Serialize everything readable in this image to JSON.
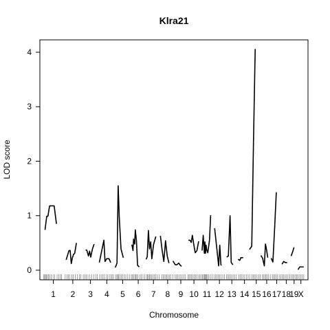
{
  "chart_data": {
    "type": "line",
    "title": "Klra21",
    "xlabel": "Chromosome",
    "ylabel": "LOD score",
    "ylim": [
      0,
      4.2
    ],
    "yticks": [
      0,
      1,
      2,
      3,
      4
    ],
    "grid": false,
    "legend": "none",
    "line_color": "#000000",
    "chromosomes": [
      {
        "label": "1",
        "start": 0.0,
        "end": 195.0
      },
      {
        "label": "2",
        "start": 195.0,
        "end": 377.0
      },
      {
        "label": "3",
        "start": 377.0,
        "end": 537.0
      },
      {
        "label": "4",
        "start": 537.0,
        "end": 693.0
      },
      {
        "label": "5",
        "start": 693.0,
        "end": 845.0
      },
      {
        "label": "6",
        "start": 845.0,
        "end": 995.0
      },
      {
        "label": "7",
        "start": 995.0,
        "end": 1140.0
      },
      {
        "label": "8",
        "start": 1140.0,
        "end": 1270.0
      },
      {
        "label": "9",
        "start": 1270.0,
        "end": 1395.0
      },
      {
        "label": "10",
        "start": 1395.0,
        "end": 1525.0
      },
      {
        "label": "11",
        "start": 1525.0,
        "end": 1647.0
      },
      {
        "label": "12",
        "start": 1647.0,
        "end": 1767.0
      },
      {
        "label": "13",
        "start": 1767.0,
        "end": 1887.0
      },
      {
        "label": "14",
        "start": 1887.0,
        "end": 2012.0
      },
      {
        "label": "15",
        "start": 2012.0,
        "end": 2116.0
      },
      {
        "label": "16",
        "start": 2116.0,
        "end": 2214.0
      },
      {
        "label": "17",
        "start": 2214.0,
        "end": 2309.0
      },
      {
        "label": "18",
        "start": 2309.0,
        "end": 2400.0
      },
      {
        "label": "19",
        "start": 2400.0,
        "end": 2461.0
      },
      {
        "label": "X",
        "start": 2461.0,
        "end": 2532.0
      }
    ],
    "series": [
      {
        "chr": "1",
        "x": [
          16.6,
          33.2,
          44.3,
          60.9,
          105.2,
          127.3
        ],
        "y": [
          0.74,
          0.99,
          0.99,
          1.18,
          1.18,
          0.85
        ]
      },
      {
        "chr": "2",
        "x": [
          221.3,
          248.9,
          260.0,
          271.1,
          282.2,
          293.2,
          304.3,
          320.9
        ],
        "y": [
          0.19,
          0.36,
          0.36,
          0.12,
          0.23,
          0.29,
          0.31,
          0.5
        ]
      },
      {
        "chr": "3",
        "x": [
          409.8,
          420.9,
          437.5,
          448.5,
          459.6,
          476.2,
          492.8
        ],
        "y": [
          0.37,
          0.37,
          0.26,
          0.35,
          0.24,
          0.39,
          0.48
        ]
      },
      {
        "chr": "4",
        "x": [
          542.7,
          587.0,
          598.0,
          614.6,
          636.8,
          653.4
        ],
        "y": [
          0.14,
          0.55,
          0.16,
          0.21,
          0.21,
          0.14
        ]
      },
      {
        "chr": "5",
        "x": [
          697.7,
          714.3,
          725.4,
          736.4,
          753.0,
          775.2
        ],
        "y": [
          0.05,
          0.13,
          1.55,
          0.96,
          0.39,
          0.23
        ]
      },
      {
        "chr": "6",
        "x": [
          858.2,
          869.2,
          874.8,
          885.8,
          891.4,
          902.4,
          913.5,
          930.1
        ],
        "y": [
          0.47,
          0.36,
          0.57,
          0.48,
          0.74,
          0.55,
          0.09,
          0.06
        ]
      },
      {
        "chr": "7",
        "x": [
          996.5,
          1007.5,
          1018.6,
          1029.7,
          1040.7,
          1051.8,
          1068.4,
          1090.6
        ],
        "y": [
          0.2,
          0.25,
          0.73,
          0.39,
          0.52,
          0.21,
          0.47,
          0.62
        ]
      },
      {
        "chr": "8",
        "x": [
          1134.8,
          1151.4,
          1168.0,
          1184.6,
          1201.2,
          1217.8
        ],
        "y": [
          0.63,
          0.37,
          0.16,
          0.54,
          0.26,
          0.13
        ]
      },
      {
        "chr": "9",
        "x": [
          1256.5,
          1278.7,
          1295.3,
          1311.9,
          1328.5,
          1339.6
        ],
        "y": [
          0.17,
          0.1,
          0.1,
          0.13,
          0.09,
          0.07
        ]
      },
      {
        "chr": "10",
        "x": [
          1405.9,
          1422.5,
          1433.6,
          1444.6,
          1455.7,
          1472.3,
          1488.9,
          1505.5
        ],
        "y": [
          0.55,
          0.55,
          0.51,
          0.64,
          0.5,
          0.32,
          0.36,
          0.53
        ]
      },
      {
        "chr": "11",
        "x": [
          1538.7,
          1549.8,
          1560.9,
          1566.4,
          1572.0,
          1577.5,
          1583.0,
          1594.1,
          1610.7,
          1621.8
        ],
        "y": [
          0.36,
          0.64,
          0.31,
          0.52,
          0.31,
          0.46,
          0.38,
          0.32,
          0.55,
          1.01
        ]
      },
      {
        "chr": "12",
        "x": [
          1660.5,
          1682.6,
          1699.2,
          1710.3,
          1721.4,
          1727.0
        ],
        "y": [
          0.77,
          0.38,
          0.08,
          0.46,
          0.1,
          0.09
        ]
      },
      {
        "chr": "13",
        "x": [
          1776.8,
          1793.4,
          1810.0,
          1821.1,
          1837.7
        ],
        "y": [
          0.24,
          0.26,
          1.0,
          0.14,
          0.1
        ]
      },
      {
        "chr": "14",
        "x": [
          1887.5,
          1904.1,
          1915.2,
          1937.3
        ],
        "y": [
          0.2,
          0.18,
          0.23,
          0.23
        ]
      },
      {
        "chr": "15",
        "x": [
          1998.2,
          2020.3,
          2036.9,
          2053.5
        ],
        "y": [
          0.38,
          0.44,
          2.34,
          4.06
        ]
      },
      {
        "chr": "16",
        "x": [
          2108.8,
          2125.4,
          2142.0,
          2153.0,
          2164.1,
          2175.2
        ],
        "y": [
          0.27,
          0.22,
          0.08,
          0.48,
          0.37,
          0.23
        ]
      },
      {
        "chr": "17",
        "x": [
          2208.4,
          2225.0,
          2241.6,
          2258.2
        ],
        "y": [
          0.22,
          0.15,
          0.76,
          1.43
        ]
      },
      {
        "chr": "18",
        "x": [
          2313.5,
          2330.1,
          2346.7,
          2363.3
        ],
        "y": [
          0.11,
          0.16,
          0.14,
          0.14
        ]
      },
      {
        "chr": "19",
        "x": [
          2402.1,
          2418.7,
          2429.8
        ],
        "y": [
          0.26,
          0.35,
          0.42
        ]
      },
      {
        "chr": "X",
        "x": [
          2468.5,
          2485.1,
          2501.7,
          2523.8
        ],
        "y": [
          0.01,
          0.06,
          0.06,
          0.06
        ]
      }
    ],
    "markers": [
      5.5,
      11.1,
      22.1,
      27.7,
      38.7,
      49.8,
      60.9,
      77.5,
      94.1,
      110.7,
      133.8,
      149.2,
      166.0,
      176.0,
      212.0,
      229.0,
      244.0,
      258.0,
      277.0,
      290.0,
      309.0,
      330.0,
      350.0,
      364.0,
      387.0,
      402.0,
      417.0,
      433.0,
      452.0,
      470.0,
      491.0,
      508.0,
      524.0,
      546.0,
      561.0,
      577.0,
      591.0,
      608.0,
      624.0,
      640.0,
      655.0,
      667.0,
      680.0,
      701.0,
      713.0,
      722.0,
      731.0,
      742.0,
      757.0,
      771.0,
      786.0,
      800.0,
      818.0,
      834.0,
      853.0,
      865.0,
      874.0,
      887.0,
      896.0,
      906.0,
      918.0,
      935.0,
      950.0,
      966.0,
      983.0,
      1000.0,
      1009.0,
      1019.0,
      1028.0,
      1038.0,
      1050.0,
      1062.0,
      1075.0,
      1090.0,
      1105.0,
      1122.0,
      1146.0,
      1160.0,
      1172.0,
      1185.0,
      1197.0,
      1208.0,
      1222.0,
      1236.0,
      1255.0,
      1278.0,
      1291.0,
      1304.0,
      1318.0,
      1332.0,
      1346.0,
      1362.0,
      1378.0,
      1402.0,
      1413.0,
      1425.0,
      1437.0,
      1449.0,
      1462.0,
      1476.0,
      1490.0,
      1506.0,
      1518.0,
      1531.0,
      1543.0,
      1552.0,
      1561.0,
      1567.0,
      1574.0,
      1581.0,
      1591.0,
      1604.0,
      1619.0,
      1637.0,
      1654.0,
      1668.0,
      1682.0,
      1697.0,
      1710.0,
      1724.0,
      1740.0,
      1756.0,
      1775.0,
      1788.0,
      1800.0,
      1813.0,
      1826.0,
      1840.0,
      1856.0,
      1872.0,
      1895.0,
      1910.0,
      1924.0,
      1938.0,
      1952.0,
      1968.0,
      1985.0,
      2000.0,
      2020.0,
      2033.0,
      2045.0,
      2058.0,
      2072.0,
      2088.0,
      2103.0,
      2122.0,
      2135.0,
      2147.0,
      2158.0,
      2170.0,
      2184.0,
      2200.0,
      2220.0,
      2232.0,
      2244.0,
      2256.0,
      2270.0,
      2286.0,
      2300.0,
      2316.0,
      2330.0,
      2344.0,
      2358.0,
      2372.0,
      2388.0,
      2405.0,
      2418.0,
      2430.0,
      2444.0,
      2455.0,
      2466.0,
      2480.0,
      2495.0,
      2510.0,
      2524.0
    ]
  }
}
